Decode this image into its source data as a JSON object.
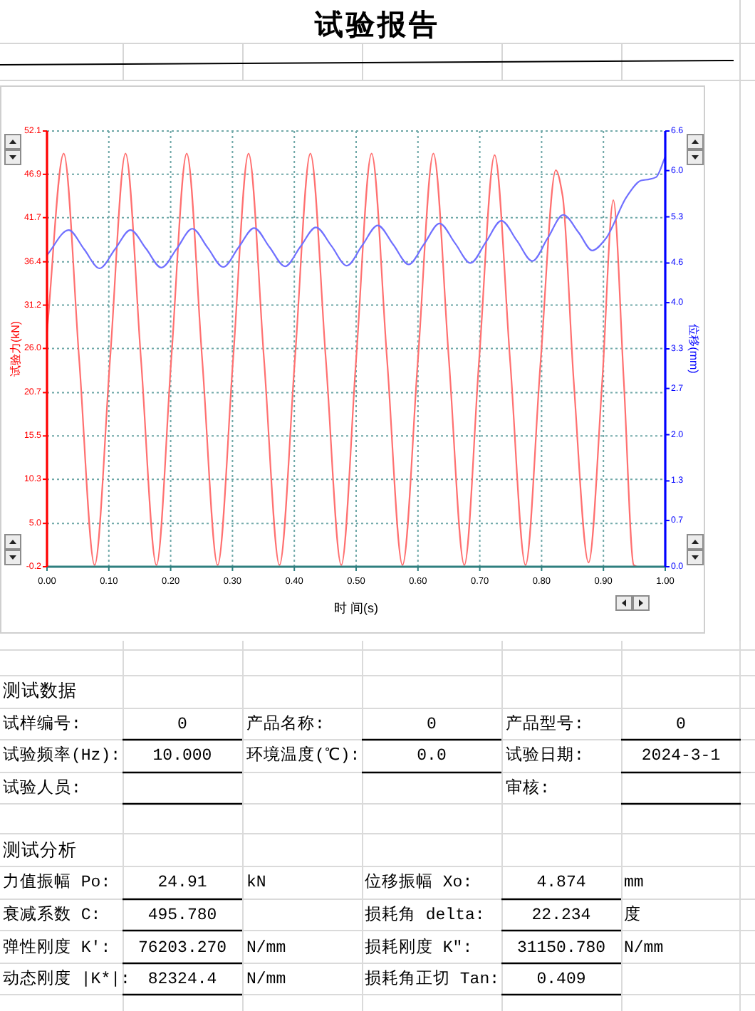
{
  "chart_data": [
    {
      "type": "line",
      "title": "试验报告",
      "xlabel": "时 间(s)",
      "ylabel": "试验力(kN)",
      "y2label": "位移(mm)",
      "xlim": [
        0,
        1
      ],
      "xticks": [
        {
          "value": 0,
          "label": "0.00"
        },
        {
          "value": 0.1,
          "label": "0.10"
        },
        {
          "value": 0.2,
          "label": "0.20"
        },
        {
          "value": 0.3,
          "label": "0.30"
        },
        {
          "value": 0.4,
          "label": "0.40"
        },
        {
          "value": 0.5,
          "label": "0.50"
        },
        {
          "value": 0.6,
          "label": "0.60"
        },
        {
          "value": 0.7,
          "label": "0.70"
        },
        {
          "value": 0.8,
          "label": "0.80"
        },
        {
          "value": 0.9,
          "label": "0.90"
        },
        {
          "value": 1,
          "label": "1.00"
        }
      ],
      "ylim": [
        -0.2,
        52.1
      ],
      "yticks": [
        -0.2,
        {
          "value": 5,
          "label": "5.0"
        },
        10.3,
        15.5,
        20.7,
        {
          "value": 26,
          "label": "26.0"
        },
        31.2,
        36.4,
        41.7,
        46.9,
        52.1
      ],
      "y2lim": [
        0,
        6.6
      ],
      "y2ticks": [
        {
          "value": 0,
          "label": "0.0"
        },
        0.7,
        1.3,
        {
          "value": 2,
          "label": "2.0"
        },
        2.7,
        3.3,
        {
          "value": 4,
          "label": "4.0"
        },
        4.6,
        5.3,
        {
          "value": 6,
          "label": "6.0"
        },
        6.6
      ],
      "grid": true,
      "series": [
        {
          "color": "#ff7070",
          "x": [
            0,
            0.027,
            0.052,
            0.077,
            0.102,
            0.127,
            0.152,
            0.177,
            0.201,
            0.226,
            0.251,
            0.276,
            0.301,
            0.326,
            0.351,
            0.376,
            0.401,
            0.426,
            0.451,
            0.476,
            0.5,
            0.525,
            0.55,
            0.575,
            0.6,
            0.625,
            0.65,
            0.675,
            0.699,
            0.724,
            0.749,
            0.774,
            0.798,
            0.823,
            0.834,
            0.852,
            0.876,
            0.898,
            0.916,
            0.933,
            0.949,
            0.955,
            1.0
          ],
          "values": [
            28.0,
            49.4,
            24.7,
            0.0,
            24.7,
            49.4,
            24.7,
            0.0,
            24.7,
            49.4,
            24.7,
            0.0,
            24.7,
            49.4,
            24.7,
            0.0,
            24.7,
            49.4,
            24.7,
            0.0,
            24.7,
            49.4,
            24.7,
            0.0,
            24.7,
            49.4,
            24.7,
            0.0,
            24.7,
            49.2,
            24.6,
            0.0,
            24.0,
            47.4,
            44.3,
            22.0,
            0.3,
            22.0,
            43.8,
            22.0,
            0.0,
            -0.2,
            -0.2
          ]
        },
        {
          "color": "#7070ff",
          "axis": "y2",
          "x": [
            0,
            0.035,
            0.06,
            0.085,
            0.11,
            0.135,
            0.16,
            0.185,
            0.21,
            0.235,
            0.26,
            0.285,
            0.31,
            0.335,
            0.36,
            0.385,
            0.41,
            0.435,
            0.46,
            0.485,
            0.51,
            0.535,
            0.56,
            0.585,
            0.61,
            0.635,
            0.66,
            0.685,
            0.71,
            0.735,
            0.76,
            0.785,
            0.81,
            0.835,
            0.86,
            0.882,
            0.903,
            0.938,
            0.961,
            0.975,
            0.985,
            1.0
          ],
          "values": [
            4.72,
            5.1,
            4.81,
            4.52,
            4.81,
            5.1,
            4.82,
            4.53,
            4.82,
            5.12,
            4.83,
            4.54,
            4.84,
            5.13,
            4.84,
            4.55,
            4.85,
            5.14,
            4.86,
            4.56,
            4.87,
            5.17,
            4.88,
            4.58,
            4.89,
            5.2,
            4.9,
            4.6,
            4.92,
            5.24,
            4.94,
            4.63,
            4.98,
            5.33,
            5.06,
            4.79,
            4.96,
            5.61,
            5.85,
            5.87,
            5.9,
            6.21
          ]
        }
      ]
    },
    {
      "type": "other",
      "annotations": [
        "测试数据",
        "试样编号:",
        "0",
        "产品名称:",
        "0",
        "产品型号:",
        "0",
        "试验频率(Hz):",
        "10.000",
        "环境温度(℃):",
        "0.0",
        "试验日期:",
        "2024-3-1",
        "试验人员:",
        "审核:",
        "测试分析",
        "力值振幅 Po:",
        "24.91",
        "kN",
        "位移振幅 Xo:",
        "4.874",
        "mm",
        "衰减系数 C:",
        "495.780",
        "损耗角 delta:",
        "22.234",
        "度",
        "弹性刚度 K':",
        "76203.270",
        "N/mm",
        "损耗刚度 K\":",
        "31150.780",
        "N/mm",
        "动态刚度 |K*|:",
        "82324.4",
        "N/mm",
        "损耗角正切 Tan:",
        "0.409"
      ]
    }
  ]
}
